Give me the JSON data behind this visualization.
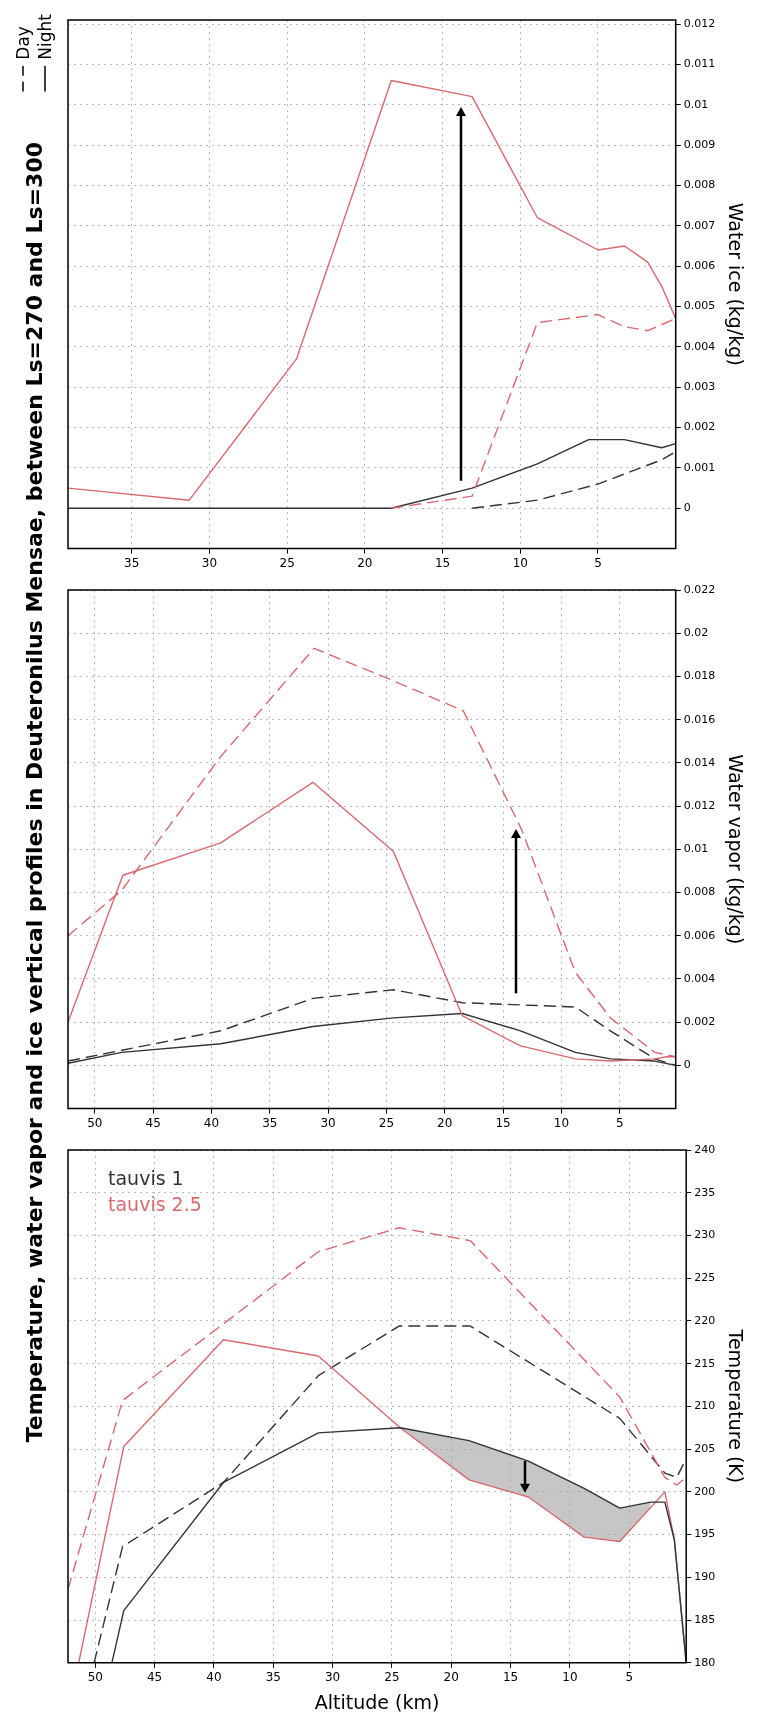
{
  "chart_data": [
    {
      "type": "line",
      "title": "Temperature, water vapor and ice vertical profiles in Deuteronilus Mensae, between Ls=270 and Ls=300",
      "annotations": [
        "Day",
        "Night"
      ],
      "ylabel": "Water ice (kg/kg)",
      "xlim": [
        39.1,
        0
      ],
      "xticks": [
        35,
        30,
        25,
        20,
        15,
        10,
        5
      ],
      "ylim": [
        -0.001,
        0.0121
      ],
      "yticks": [
        0,
        0.001,
        0.002,
        0.003,
        0.004,
        0.005,
        0.006,
        0.007,
        0.008,
        0.009,
        0.01,
        0.011,
        0.012
      ],
      "grid": true,
      "series": [
        {
          "color": "#d9696f",
          "line_style": "solid",
          "x": [
            39.1,
            31.3,
            24.4,
            18.3,
            13.1,
            8.9,
            5.0,
            3.3,
            1.8,
            0.9,
            0
          ],
          "values": [
            0.0005,
            0.0002,
            0.0037,
            0.0106,
            0.0102,
            0.0072,
            0.0064,
            0.0065,
            0.0061,
            0.0055,
            0.0047
          ]
        },
        {
          "color": "#d9696f",
          "line_style": "dashed",
          "x": [
            18.3,
            13.1,
            8.9,
            5.0,
            3.3,
            1.8,
            0
          ],
          "values": [
            0,
            0.0003,
            0.0046,
            0.0048,
            0.0045,
            0.0044,
            0.0047
          ]
        },
        {
          "color": "#333333",
          "line_style": "solid",
          "x": [
            39.1,
            18.3,
            13.1,
            8.9,
            5.6,
            3.3,
            0.9,
            0
          ],
          "values": [
            0,
            0,
            0.0005,
            0.0011,
            0.0017,
            0.0017,
            0.0015,
            0.0016
          ]
        },
        {
          "color": "#333333",
          "line_style": "dashed",
          "x": [
            13.1,
            8.9,
            5.0,
            0.9,
            0
          ],
          "values": [
            0,
            0.0002,
            0.0006,
            0.0012,
            0.0014
          ]
        }
      ]
    },
    {
      "type": "line",
      "ylabel": "Water vapor (kg/kg)",
      "xlim": [
        52.3,
        0.2
      ],
      "xticks": [
        50,
        45,
        40,
        35,
        30,
        25,
        20,
        15,
        10,
        5
      ],
      "ylim": [
        -0.002,
        0.022
      ],
      "yticks": [
        0,
        0.002,
        0.004,
        0.006,
        0.008,
        0.01,
        0.012,
        0.014,
        0.016,
        0.018,
        0.02,
        0.022
      ],
      "grid": true,
      "series": [
        {
          "color": "#d9696f",
          "line_style": "dashed",
          "x": [
            52.3,
            47.7,
            39.2,
            31.2,
            24.4,
            18.4,
            13.4,
            8.8,
            5.8,
            2.0,
            0.2
          ],
          "values": [
            0.006,
            0.0081,
            0.0143,
            0.0193,
            0.0178,
            0.0164,
            0.0109,
            0.0043,
            0.0022,
            0.0006,
            0.0004
          ]
        },
        {
          "color": "#d9696f",
          "line_style": "solid",
          "x": [
            52.3,
            47.6,
            39.2,
            31.3,
            24.4,
            18.5,
            13.5,
            8.8,
            5.8,
            2.0,
            1.0,
            0.2
          ],
          "values": [
            0.002,
            0.0088,
            0.0103,
            0.0131,
            0.0099,
            0.0023,
            0.0009,
            0.0003,
            0.0002,
            0.0003,
            0.0004,
            0.0004
          ]
        },
        {
          "color": "#333333",
          "line_style": "dashed",
          "x": [
            52.3,
            47.7,
            39.2,
            31.3,
            24.4,
            18.5,
            13.5,
            8.8,
            5.8,
            2.0,
            0.2
          ],
          "values": [
            0.0002,
            0.0007,
            0.0016,
            0.0031,
            0.0035,
            0.0029,
            0.0028,
            0.0027,
            0.0016,
            0.0003,
            0
          ]
        },
        {
          "color": "#333333",
          "line_style": "solid",
          "x": [
            52.3,
            47.7,
            39.2,
            31.3,
            24.4,
            18.5,
            13.5,
            8.8,
            5.8,
            2.0,
            0.2
          ],
          "values": [
            0.0001,
            0.0006,
            0.001,
            0.0018,
            0.0022,
            0.0024,
            0.0016,
            0.0006,
            0.0003,
            0.0002,
            0
          ]
        }
      ]
    },
    {
      "type": "line",
      "xlabel": "Altitude (km)",
      "ylabel": "Temperature (K)",
      "xlim": [
        52.3,
        0.2
      ],
      "xticks": [
        50,
        45,
        40,
        35,
        30,
        25,
        20,
        15,
        10,
        5
      ],
      "ylim": [
        180,
        240
      ],
      "yticks": [
        180,
        185,
        190,
        195,
        200,
        205,
        210,
        215,
        220,
        225,
        230,
        235,
        240
      ],
      "grid": true,
      "legend": "top left",
      "series": [
        {
          "name": "tauvis 1",
          "color": "#333333",
          "line_style": "solid",
          "x": [
            48.6,
            47.6,
            39.2,
            31.2,
            24.3,
            18.5,
            13.5,
            8.8,
            5.8,
            3.2,
            2.0,
            1.2,
            0.2
          ],
          "values": [
            180,
            186.1,
            201.1,
            206.9,
            207.5,
            206,
            203.6,
            200.4,
            198.1,
            198.8,
            198.8,
            194.4,
            180
          ],
          "lower": [
            null,
            null,
            null,
            null,
            207.5,
            201.4,
            199.4,
            194.7,
            194.2,
            198.2,
            null,
            null,
            null
          ],
          "upper": [
            null,
            null,
            null,
            null,
            207.5,
            206,
            203.6,
            200.4,
            198.1,
            198.8,
            null,
            null,
            null
          ]
        },
        {
          "name": "tauvis 2.5",
          "color": "#d9696f",
          "line_style": "solid",
          "x": [
            51.4,
            47.6,
            39.2,
            31.2,
            24.3,
            18.5,
            13.5,
            8.8,
            5.8,
            2.0,
            1.2,
            0.2
          ],
          "values": [
            180,
            205.3,
            217.8,
            215.9,
            207.5,
            201.4,
            199.4,
            194.7,
            194.2,
            200,
            194.4,
            180
          ]
        },
        {
          "color": "#d9696f",
          "line_style": "dashed",
          "x": [
            52.3,
            47.7,
            31.2,
            24.4,
            18.4,
            5.8,
            2.0,
            1.0,
            0.2
          ],
          "values": [
            188.6,
            210.7,
            228.1,
            230.9,
            229.4,
            211.1,
            201.7,
            200.8,
            201.7
          ]
        },
        {
          "color": "#333333",
          "line_style": "dashed",
          "x": [
            50.1,
            47.7,
            39.2,
            31.2,
            24.4,
            18.4,
            5.8,
            2.0,
            1.0,
            0.2
          ],
          "values": [
            180,
            193.6,
            201.1,
            213.6,
            219.4,
            219.4,
            208.6,
            202.2,
            201.7,
            203.9
          ]
        }
      ]
    }
  ]
}
